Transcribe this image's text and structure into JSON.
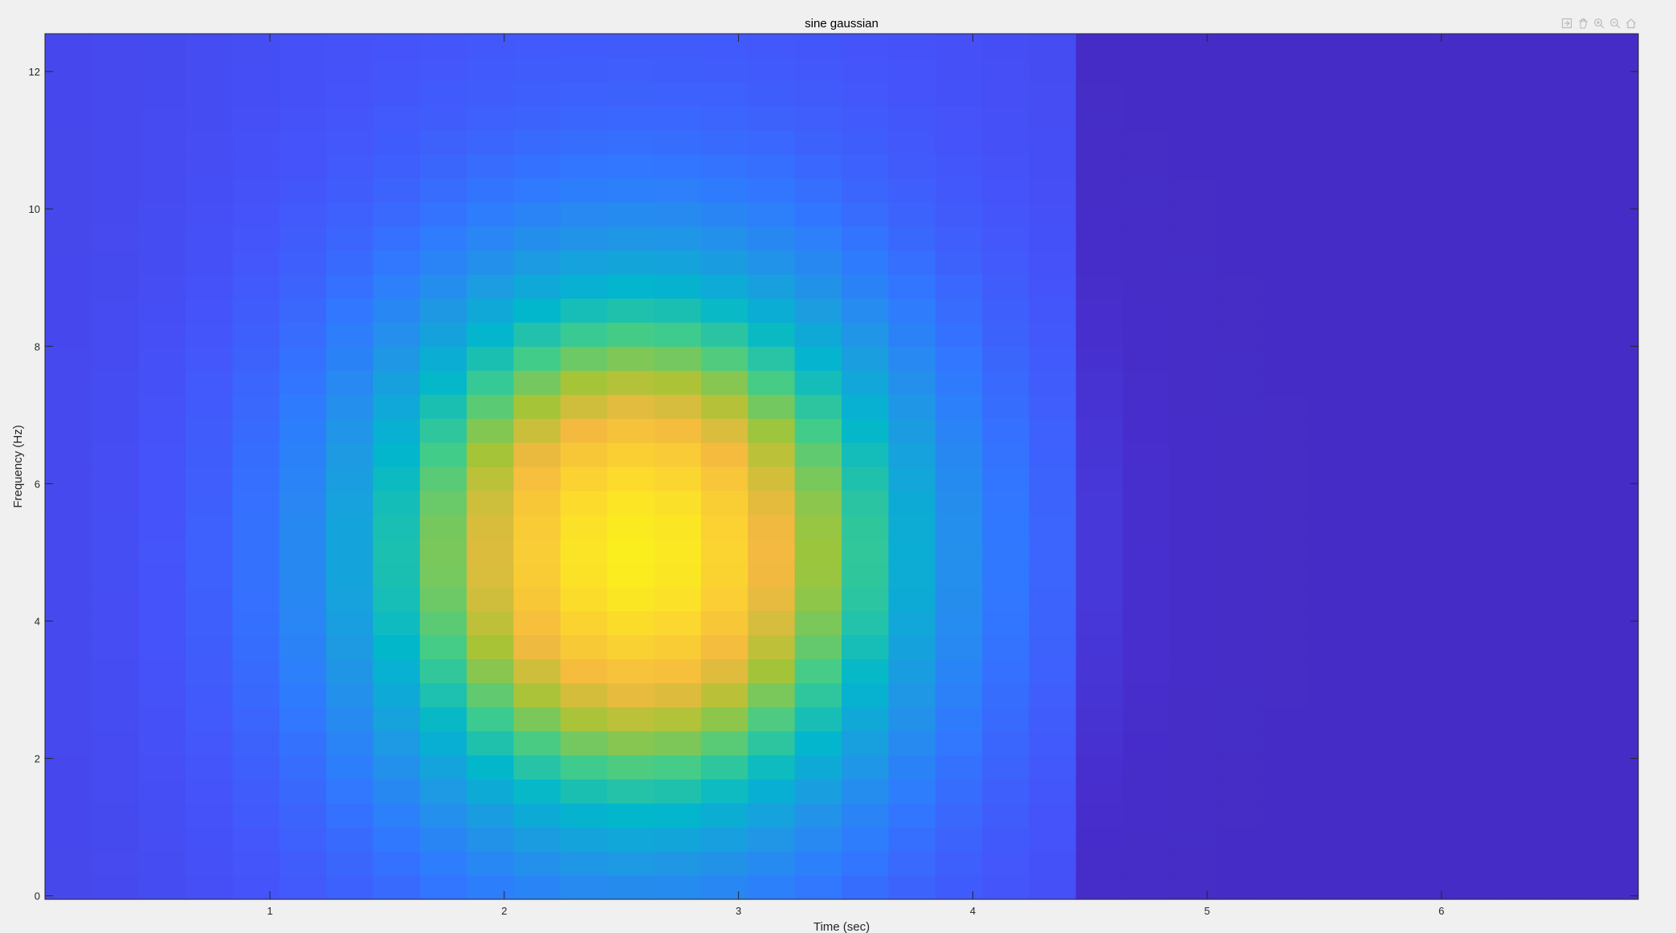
{
  "chart_data": {
    "type": "heatmap",
    "title": "sine gaussian",
    "xlabel": "Time (sec)",
    "ylabel": "Frequency (Hz)",
    "xlim": [
      0.04,
      6.84
    ],
    "ylim": [
      -0.05,
      12.55
    ],
    "xticks": [
      1,
      2,
      3,
      4,
      5,
      6
    ],
    "yticks": [
      0,
      2,
      4,
      6,
      8,
      10,
      12
    ],
    "xtick_labels": [
      "1",
      "2",
      "3",
      "4",
      "5",
      "6"
    ],
    "ytick_labels": [
      "0",
      "2",
      "4",
      "6",
      "8",
      "10",
      "12"
    ],
    "colormap": "parula",
    "grid": false,
    "time_bins": {
      "start": 0.04,
      "step": 0.2,
      "count": 34
    },
    "freq_bins": {
      "start": -0.05,
      "step": 0.35,
      "count": 36
    },
    "signal": {
      "center_time": 2.57,
      "center_freq": 5.0,
      "time_spread": 1.05,
      "freq_spread": 3.6,
      "decay_start_time": 4.5
    }
  },
  "toolbar": {
    "buttons": [
      "export-icon",
      "pan-icon",
      "zoom-in-icon",
      "zoom-out-icon",
      "home-icon"
    ]
  },
  "colors": {
    "figure_background": "#f0f0f0",
    "axes_box": "#262626"
  }
}
